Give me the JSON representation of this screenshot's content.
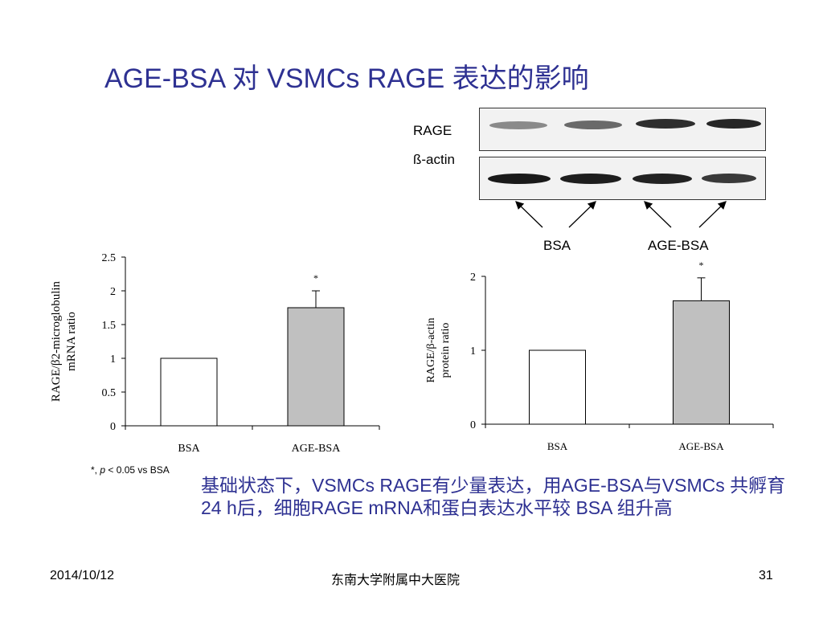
{
  "title": "AGE-BSA 对 VSMCs RAGE 表达的影响",
  "blot": {
    "rage_label": "RAGE",
    "actin_label": "ß-actin",
    "lane_bsa": "BSA",
    "lane_age": "AGE-BSA"
  },
  "chart_data": [
    {
      "type": "bar",
      "ylabel_line1": "RAGE/β2-microglobulin",
      "ylabel_line2": "mRNA ratio",
      "xlabel": "",
      "categories": [
        "BSA",
        "AGE-BSA"
      ],
      "values": [
        1.0,
        1.75
      ],
      "error": [
        0,
        0.25
      ],
      "significance": [
        "",
        "*"
      ],
      "ylim": [
        0,
        2.5
      ],
      "yticks": [
        0,
        0.5,
        1,
        1.5,
        2,
        2.5
      ],
      "ytick_labels": [
        "0",
        "0.5",
        "1",
        "1.5",
        "2",
        "2.5"
      ],
      "colors": [
        "#ffffff",
        "#c0c0c0"
      ],
      "grid": false
    },
    {
      "type": "bar",
      "ylabel_line1": "RAGE/β-actin",
      "ylabel_line2": "protein ratio",
      "xlabel": "",
      "categories": [
        "BSA",
        "AGE-BSA"
      ],
      "values": [
        1.0,
        1.67
      ],
      "error": [
        0,
        0.31
      ],
      "significance": [
        "",
        "*"
      ],
      "ylim": [
        0,
        2
      ],
      "yticks": [
        0,
        1,
        2
      ],
      "ytick_labels": [
        "0",
        "1",
        "2"
      ],
      "colors": [
        "#ffffff",
        "#c0c0c0"
      ],
      "grid": false
    }
  ],
  "note": "*, p < 0.05 vs BSA",
  "caption": "基础状态下，VSMCs RAGE有少量表达，用AGE-BSA与VSMCs 共孵育24 h后，细胞RAGE mRNA和蛋白表达水平较 BSA 组升高",
  "footer": {
    "date": "2014/10/12",
    "institution": "东南大学附属中大医院",
    "page": "31"
  }
}
